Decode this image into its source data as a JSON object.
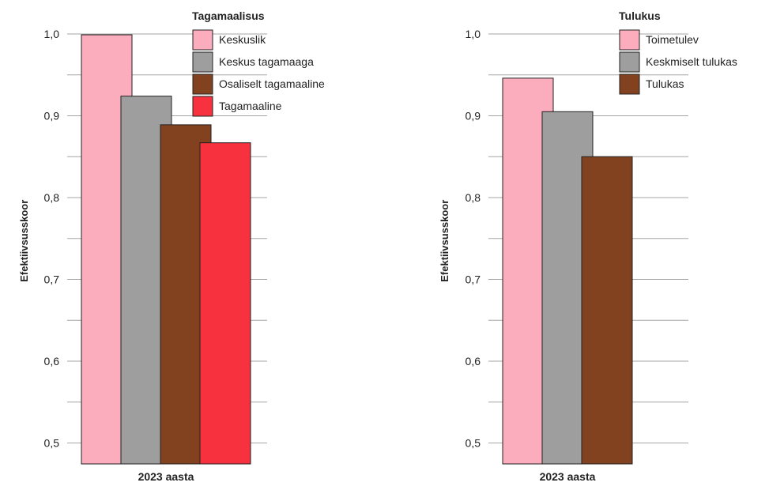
{
  "chart_data": [
    {
      "type": "bar",
      "categories": [
        "2023 aasta"
      ],
      "series": [
        {
          "name": "Keskuslik",
          "values": [
            0.999
          ],
          "color": "#FBADBE"
        },
        {
          "name": "Keskus tagamaaga",
          "values": [
            0.924
          ],
          "color": "#9E9E9E"
        },
        {
          "name": "Osaliselt tagamaaline",
          "values": [
            0.889
          ],
          "color": "#82411F"
        },
        {
          "name": "Tagamaaline",
          "values": [
            0.867
          ],
          "color": "#F7313D"
        }
      ],
      "title": "",
      "xlabel": "",
      "ylabel": "Efektiivsusskoor",
      "ylim": [
        0.47,
        1.0
      ],
      "yticks": [
        0.5,
        0.6,
        0.7,
        0.8,
        0.9,
        1.0
      ],
      "ytick_labels": [
        "0,5",
        "0,6",
        "0,7",
        "0,8",
        "0,9",
        "1,0"
      ],
      "grid": true,
      "legend_title": "Tagamaalisus",
      "legend_position": "top-right"
    },
    {
      "type": "bar",
      "categories": [
        "2023 aasta"
      ],
      "series": [
        {
          "name": "Toimetulev",
          "values": [
            0.946
          ],
          "color": "#FBADBE"
        },
        {
          "name": "Keskmiselt tulukas",
          "values": [
            0.905
          ],
          "color": "#9E9E9E"
        },
        {
          "name": "Tulukas",
          "values": [
            0.85
          ],
          "color": "#82411F"
        }
      ],
      "title": "",
      "xlabel": "",
      "ylabel": "Efektiivsusskoor",
      "ylim": [
        0.47,
        1.0
      ],
      "yticks": [
        0.5,
        0.6,
        0.7,
        0.8,
        0.9,
        1.0
      ],
      "ytick_labels": [
        "0,5",
        "0,6",
        "0,7",
        "0,8",
        "0,9",
        "1,0"
      ],
      "grid": true,
      "legend_title": "Tulukus",
      "legend_position": "top-right"
    }
  ]
}
